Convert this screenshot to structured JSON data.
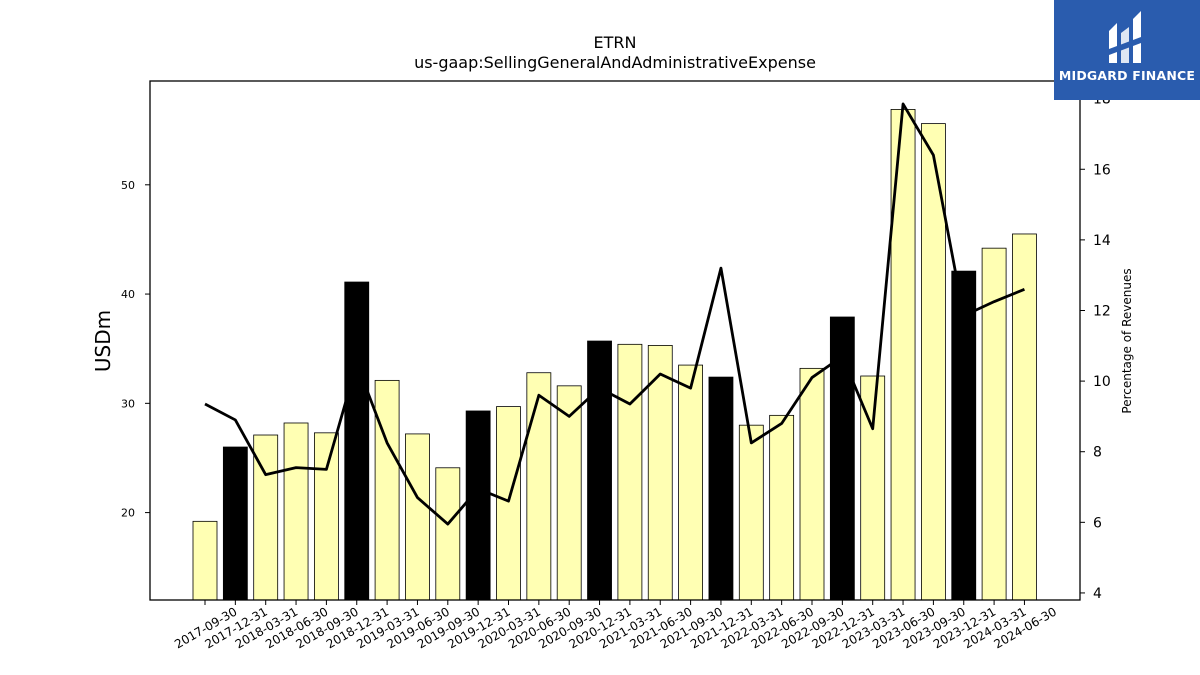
{
  "chart_data": {
    "type": "bar",
    "title": "ETRN",
    "subtitle": "us-gaap:SellingGeneralAndAdministrativeExpense",
    "ylabel": "USDm",
    "y2label": "Percentage of Revenues",
    "ylim": [
      12,
      59.5
    ],
    "y2lim": [
      3.8,
      18.5
    ],
    "yticks": [
      20,
      30,
      40,
      50
    ],
    "y2ticks": [
      4,
      6,
      8,
      10,
      12,
      14,
      16,
      18
    ],
    "categories": [
      "2017-09-30",
      "2017-12-31",
      "2018-03-31",
      "2018-06-30",
      "2018-09-30",
      "2018-12-31",
      "2019-03-31",
      "2019-06-30",
      "2019-09-30",
      "2019-12-31",
      "2020-03-31",
      "2020-06-30",
      "2020-09-30",
      "2020-12-31",
      "2021-03-31",
      "2021-06-30",
      "2021-09-30",
      "2021-12-31",
      "2022-03-31",
      "2022-06-30",
      "2022-09-30",
      "2022-12-31",
      "2023-03-31",
      "2023-06-30",
      "2023-09-30",
      "2023-12-31",
      "2024-03-31",
      "2024-06-30"
    ],
    "series": [
      {
        "type": "bar",
        "values": [
          19.2,
          26.0,
          27.1,
          28.2,
          27.3,
          41.1,
          32.1,
          27.2,
          24.1,
          29.3,
          29.7,
          32.8,
          31.6,
          35.7,
          35.4,
          35.3,
          33.5,
          32.4,
          28.0,
          28.9,
          33.2,
          37.9,
          32.5,
          56.9,
          55.6,
          42.1,
          44.2,
          45.5
        ],
        "highlight": [
          false,
          true,
          false,
          false,
          false,
          true,
          false,
          false,
          false,
          true,
          false,
          false,
          false,
          true,
          false,
          false,
          false,
          true,
          false,
          false,
          false,
          true,
          false,
          false,
          false,
          true,
          false,
          false
        ]
      },
      {
        "type": "line",
        "axis": "right",
        "values": [
          9.35,
          8.9,
          7.35,
          7.55,
          7.5,
          10.5,
          8.25,
          6.7,
          5.95,
          6.95,
          6.6,
          9.6,
          9.0,
          9.8,
          9.35,
          10.2,
          9.8,
          13.2,
          8.25,
          8.8,
          10.1,
          10.7,
          8.65,
          17.85,
          16.4,
          11.85,
          12.25,
          12.6
        ]
      }
    ],
    "colors": {
      "bar": "#ffffb3",
      "bar_highlight": "#000000",
      "line": "#000000",
      "edge": "#000000"
    },
    "legend": "none",
    "grid": false
  },
  "logo": {
    "text": "MIDGARD FINANCE",
    "icon": "midgard-logo-icon"
  }
}
